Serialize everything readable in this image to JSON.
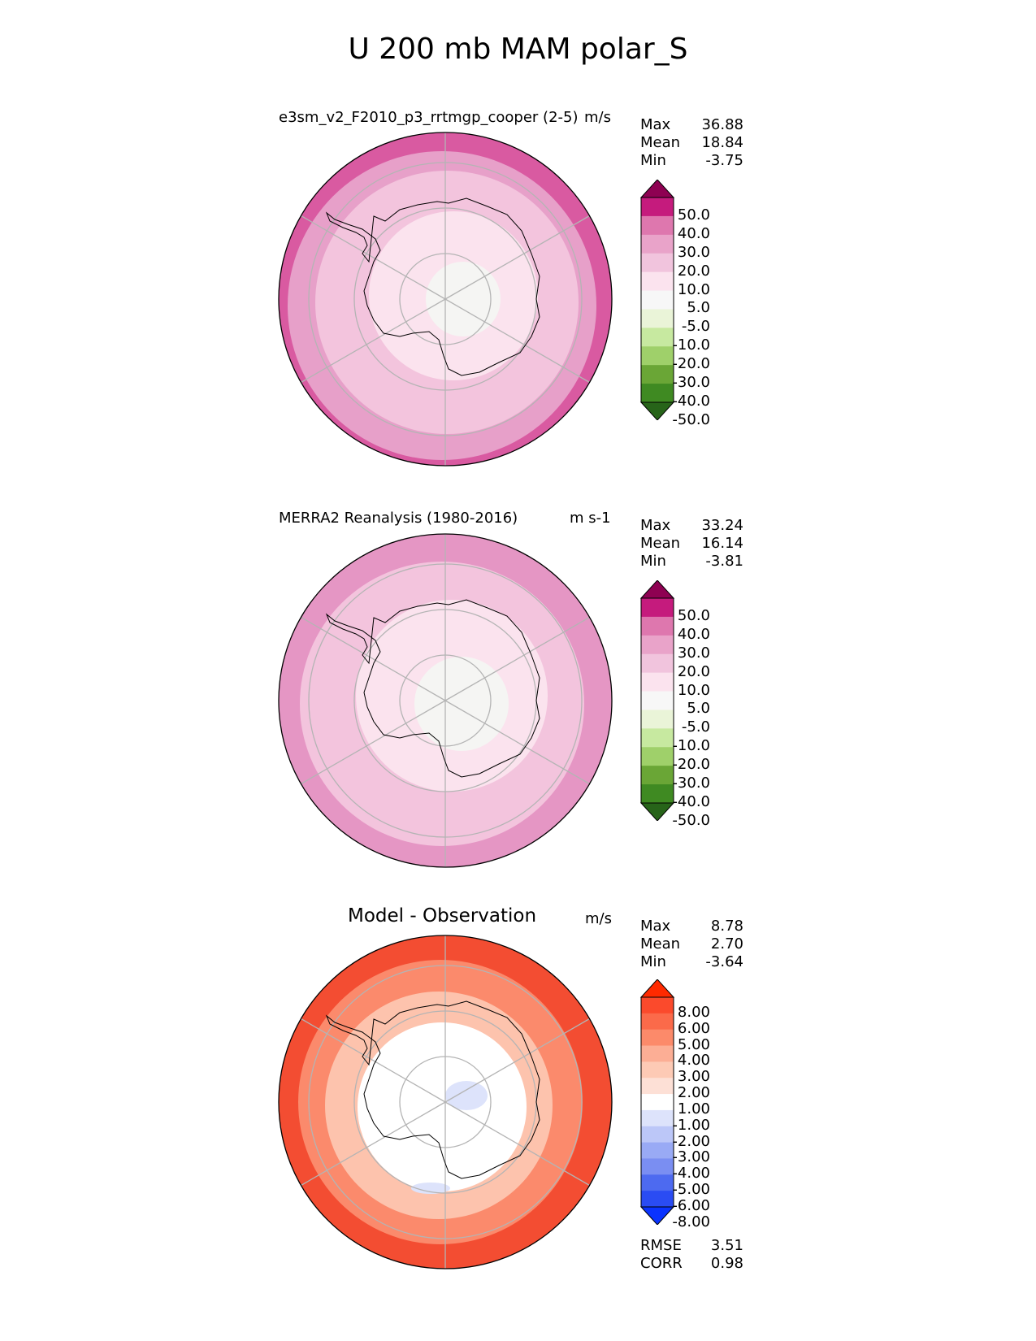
{
  "title": "U 200 mb MAM polar_S",
  "panels": [
    {
      "name": "model",
      "title": "e3sm_v2_F2010_p3_rrtmgp_cooper (2-5)",
      "units": "m/s",
      "stats": [
        {
          "label": "Max",
          "value": "36.88"
        },
        {
          "label": "Mean",
          "value": "18.84"
        },
        {
          "label": "Min",
          "value": "-3.75"
        }
      ],
      "colorbar": {
        "labels": [
          "50.0",
          "40.0",
          "30.0",
          "20.0",
          "10.0",
          "5.0",
          "-5.0",
          "-10.0",
          "-20.0",
          "-30.0",
          "-40.0",
          "-50.0"
        ],
        "colors": [
          "#8e0152",
          "#c51b7d",
          "#de77ae",
          "#e9a3c9",
          "#f1c4dd",
          "#fbe3ee",
          "#f7f7f7",
          "#eaf4d8",
          "#c7e9a0",
          "#9fd06a",
          "#6aa636",
          "#3f8a22",
          "#276419"
        ]
      },
      "rings": [
        {
          "fill": "#d95aa1"
        },
        {
          "fill": "#e7a0c9"
        },
        {
          "fill": "#f3c4dd"
        },
        {
          "fill": "#fbe3ee"
        },
        {
          "fill": "#f5f5f3"
        }
      ]
    },
    {
      "name": "obs",
      "title": "MERRA2 Reanalysis (1980-2016)",
      "units": "m s-1",
      "stats": [
        {
          "label": "Max",
          "value": "33.24"
        },
        {
          "label": "Mean",
          "value": "16.14"
        },
        {
          "label": "Min",
          "value": "-3.81"
        }
      ],
      "colorbar": {
        "labels": [
          "50.0",
          "40.0",
          "30.0",
          "20.0",
          "10.0",
          "5.0",
          "-5.0",
          "-10.0",
          "-20.0",
          "-30.0",
          "-40.0",
          "-50.0"
        ],
        "colors": [
          "#8e0152",
          "#c51b7d",
          "#de77ae",
          "#e9a3c9",
          "#f1c4dd",
          "#fbe3ee",
          "#f7f7f7",
          "#eaf4d8",
          "#c7e9a0",
          "#9fd06a",
          "#6aa636",
          "#3f8a22",
          "#276419"
        ]
      },
      "rings": [
        {
          "fill": "#e596c4"
        },
        {
          "fill": "#f3c4dd"
        },
        {
          "fill": "#fbe3ee"
        },
        {
          "fill": "#f5f5f3"
        }
      ]
    },
    {
      "name": "diff",
      "title": "Model - Observation",
      "units": "m/s",
      "stats": [
        {
          "label": "Max",
          "value": "8.78"
        },
        {
          "label": "Mean",
          "value": "2.70"
        },
        {
          "label": "Min",
          "value": "-3.64"
        }
      ],
      "extra_stats": [
        {
          "label": "RMSE",
          "value": "3.51"
        },
        {
          "label": "CORR",
          "value": "0.98"
        }
      ],
      "colorbar": {
        "labels": [
          "8.00",
          "6.00",
          "5.00",
          "4.00",
          "3.00",
          "2.00",
          "1.00",
          "-1.00",
          "-2.00",
          "-3.00",
          "-4.00",
          "-5.00",
          "-6.00",
          "-8.00"
        ],
        "colors": [
          "#ff2a00",
          "#fb4a2c",
          "#fb6a4a",
          "#fc8a6a",
          "#fcae95",
          "#fdcab5",
          "#fde0d6",
          "#ffffff",
          "#dde3fb",
          "#bcc7f8",
          "#99aaf5",
          "#7a8ef2",
          "#4d6af0",
          "#2a4cf3",
          "#0a33ff"
        ]
      },
      "rings": [
        {
          "fill": "#f34d32"
        },
        {
          "fill": "#fb8a6c"
        },
        {
          "fill": "#fdc3ad"
        },
        {
          "fill": "#ffffff"
        }
      ]
    }
  ]
}
